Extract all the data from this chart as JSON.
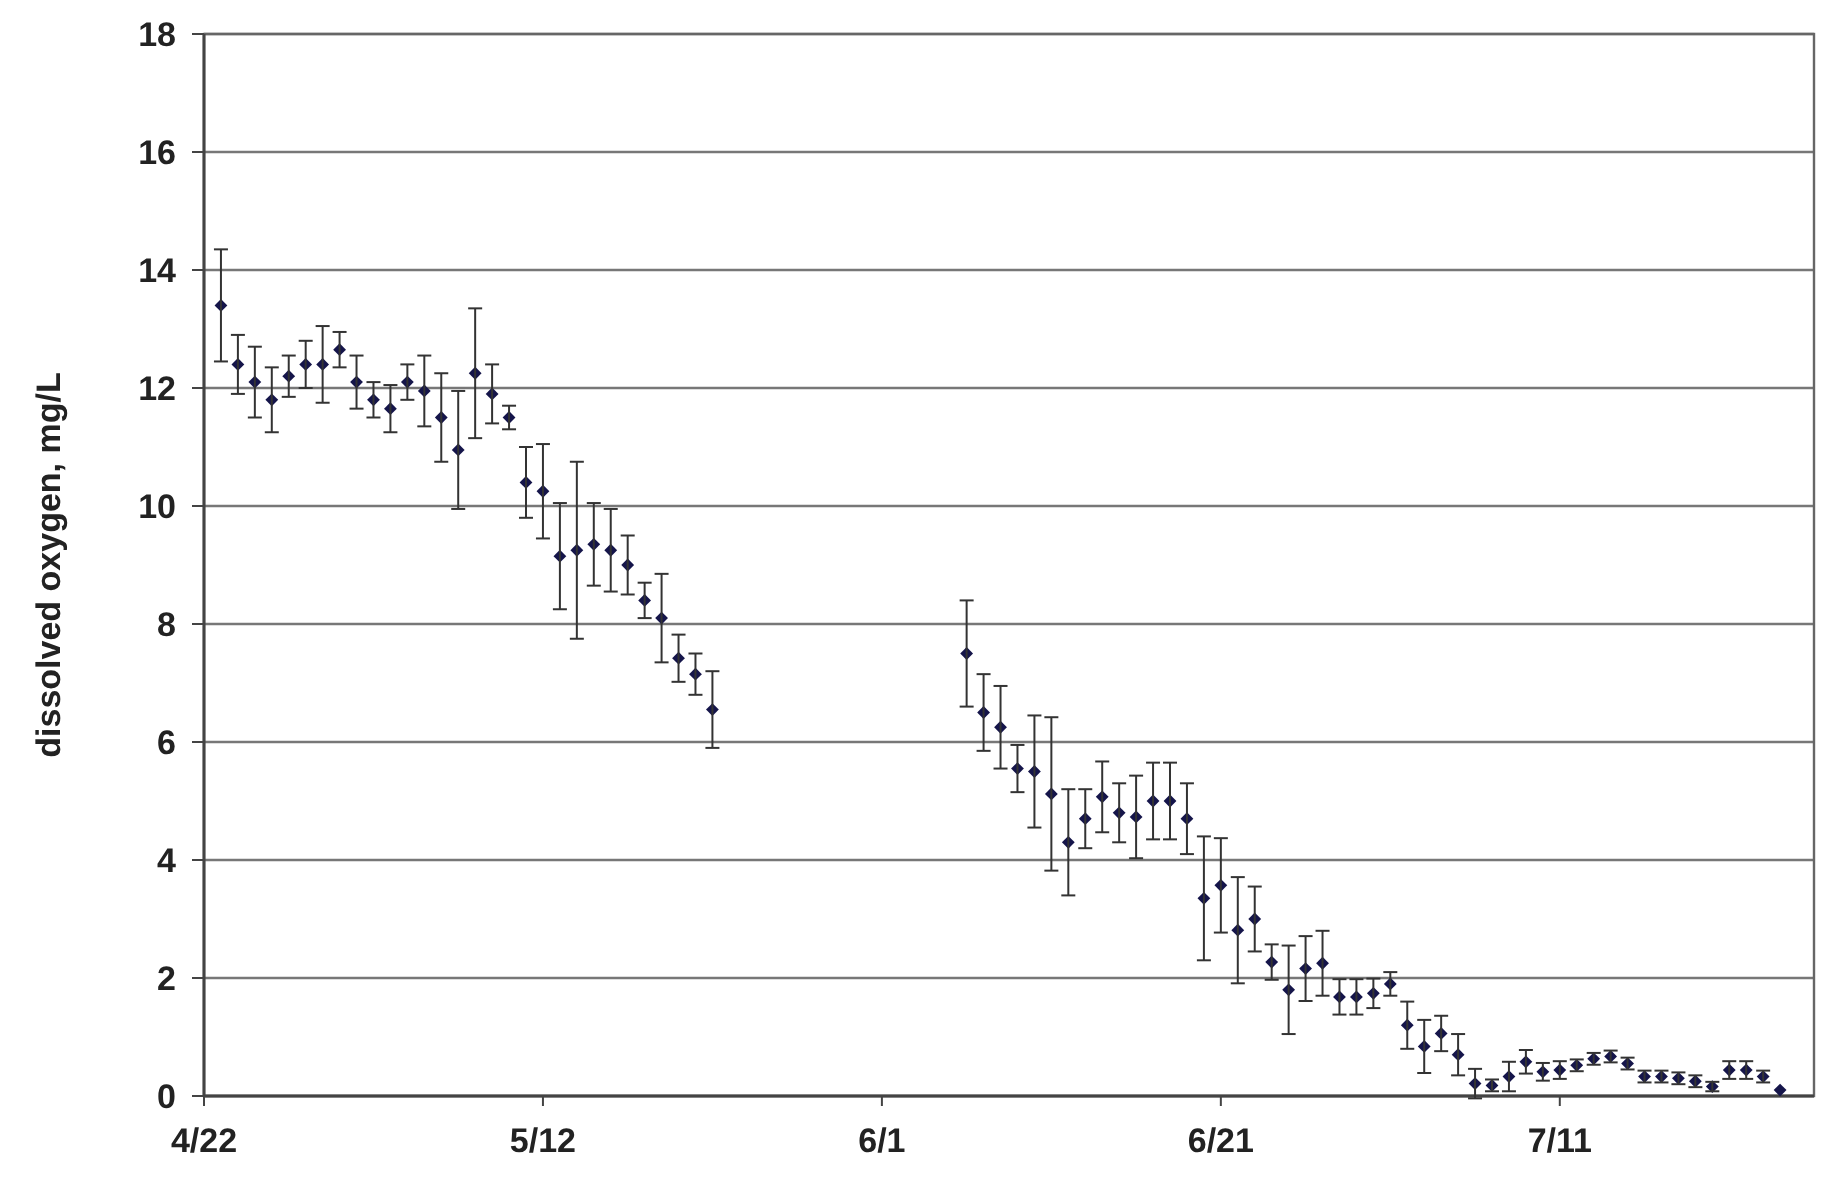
{
  "chart_data": {
    "type": "scatter",
    "ylabel": "dissolved oxygen, mg/L",
    "x": [
      "--04-23",
      "--04-24",
      "--04-25",
      "--04-26",
      "--04-27",
      "--04-28",
      "--04-29",
      "--04-30",
      "--05-01",
      "--05-02",
      "--05-03",
      "--05-04",
      "--05-05",
      "--05-06",
      "--05-07",
      "--05-08",
      "--05-09",
      "--05-10",
      "--05-11",
      "--05-12",
      "--05-13",
      "--05-14",
      "--05-15",
      "--05-16",
      "--05-17",
      "--05-18",
      "--05-19",
      "--05-20",
      "--05-21",
      "--05-22",
      "--06-06",
      "--06-07",
      "--06-08",
      "--06-09",
      "--06-10",
      "--06-11",
      "--06-12",
      "--06-13",
      "--06-14",
      "--06-15",
      "--06-16",
      "--06-17",
      "--06-18",
      "--06-19",
      "--06-20",
      "--06-21",
      "--06-22",
      "--06-23",
      "--06-24",
      "--06-25",
      "--06-26",
      "--06-27",
      "--06-28",
      "--06-29",
      "--06-30",
      "--07-01",
      "--07-02",
      "--07-03",
      "--07-04",
      "--07-05",
      "--07-06",
      "--07-07",
      "--07-08",
      "--07-09",
      "--07-10",
      "--07-11",
      "--07-12",
      "--07-13",
      "--07-14",
      "--07-15",
      "--07-16",
      "--07-17",
      "--07-18",
      "--07-19",
      "--07-20",
      "--07-21",
      "--07-22",
      "--07-23",
      "--07-24"
    ],
    "series": [
      {
        "color": "#15154a",
        "values": [
          13.4,
          12.4,
          12.1,
          11.8,
          12.2,
          12.4,
          12.4,
          12.65,
          12.1,
          11.8,
          11.65,
          12.1,
          11.95,
          11.5,
          10.95,
          12.25,
          11.9,
          11.5,
          10.4,
          10.25,
          9.15,
          9.25,
          9.35,
          9.25,
          9.0,
          8.4,
          8.1,
          7.42,
          7.15,
          6.55,
          7.5,
          6.5,
          6.25,
          5.55,
          5.5,
          5.12,
          4.3,
          4.7,
          5.07,
          4.8,
          4.73,
          5.0,
          5.0,
          4.7,
          3.35,
          3.57,
          2.81,
          3.0,
          2.27,
          1.8,
          2.16,
          2.25,
          1.68,
          1.68,
          1.74,
          1.9,
          1.2,
          0.84,
          1.06,
          0.7,
          0.21,
          0.18,
          0.33,
          0.58,
          0.41,
          0.44,
          0.52,
          0.63,
          0.67,
          0.55,
          0.33,
          0.33,
          0.3,
          0.25,
          0.16,
          0.44,
          0.44,
          0.33,
          0.1
        ],
        "errors": [
          0.95,
          0.5,
          0.6,
          0.55,
          0.35,
          0.4,
          0.65,
          0.3,
          0.45,
          0.3,
          0.4,
          0.3,
          0.6,
          0.75,
          1.0,
          1.1,
          0.5,
          0.2,
          0.6,
          0.8,
          0.9,
          1.5,
          0.7,
          0.7,
          0.5,
          0.3,
          0.75,
          0.4,
          0.35,
          0.65,
          0.9,
          0.65,
          0.7,
          0.4,
          0.95,
          1.3,
          0.9,
          0.5,
          0.6,
          0.5,
          0.7,
          0.65,
          0.65,
          0.6,
          1.05,
          0.8,
          0.9,
          0.55,
          0.3,
          0.75,
          0.55,
          0.55,
          0.3,
          0.3,
          0.25,
          0.2,
          0.4,
          0.45,
          0.3,
          0.35,
          0.25,
          0.1,
          0.25,
          0.2,
          0.15,
          0.15,
          0.1,
          0.1,
          0.1,
          0.1,
          0.1,
          0.1,
          0.1,
          0.1,
          0.08,
          0.15,
          0.15,
          0.1,
          null
        ]
      }
    ],
    "xlim": [
      "--04-22",
      "--07-26"
    ],
    "xticks": [
      {
        "value": "--04-22",
        "label": "4/22"
      },
      {
        "value": "--05-12",
        "label": "5/12"
      },
      {
        "value": "--06-01",
        "label": "6/1"
      },
      {
        "value": "--06-21",
        "label": "6/21"
      },
      {
        "value": "--07-11",
        "label": "7/11"
      }
    ],
    "ylim": [
      0,
      18
    ],
    "yticks": [
      0,
      2,
      4,
      6,
      8,
      10,
      12,
      14,
      16,
      18
    ],
    "grid": "y",
    "marker": "diamond"
  }
}
